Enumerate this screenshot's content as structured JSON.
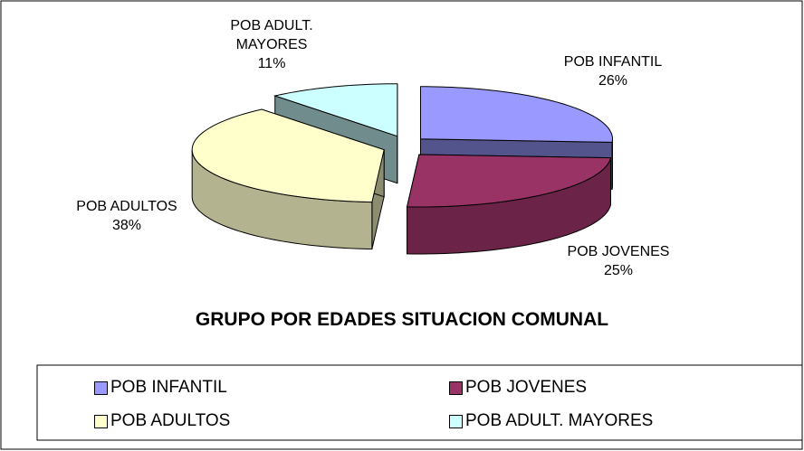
{
  "chart_data": {
    "type": "pie",
    "title": "GRUPO POR EDADES SITUACION COMUNAL",
    "categories": [
      "POB INFANTIL",
      "POB JOVENES",
      "POB ADULTOS",
      "POB ADULT. MAYORES"
    ],
    "values": [
      26,
      25,
      38,
      11
    ],
    "value_labels": [
      "26%",
      "25%",
      "38%",
      "11%"
    ],
    "colors": [
      "#9999ff",
      "#993366",
      "#ffffcc",
      "#ccffff"
    ],
    "legend": "bottom"
  }
}
